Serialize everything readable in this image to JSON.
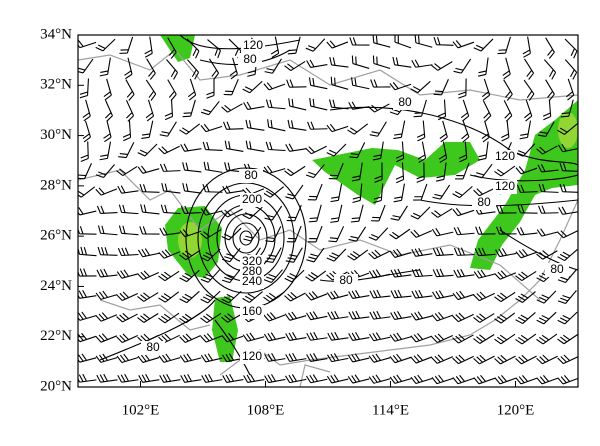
{
  "map": {
    "xlim": [
      99,
      123
    ],
    "ylim": [
      20,
      34
    ],
    "xticks": [
      {
        "value": 102,
        "label": "102°E"
      },
      {
        "value": 108,
        "label": "108°E"
      },
      {
        "value": 114,
        "label": "114°E"
      },
      {
        "value": 120,
        "label": "120°E"
      }
    ],
    "yticks": [
      {
        "value": 20,
        "label": "20°N"
      },
      {
        "value": 22,
        "label": "22°N"
      },
      {
        "value": 24,
        "label": "24°N"
      },
      {
        "value": 26,
        "label": "26°N"
      },
      {
        "value": 28,
        "label": "28°N"
      },
      {
        "value": 30,
        "label": "30°N"
      },
      {
        "value": 32,
        "label": "32°N"
      },
      {
        "value": 34,
        "label": "34°N"
      }
    ],
    "contour_labels": [
      "120",
      "80",
      "80",
      "120",
      "120",
      "80",
      "80",
      "200",
      "320",
      "280",
      "240",
      "80",
      "80",
      "160",
      "120",
      "80"
    ]
  }
}
